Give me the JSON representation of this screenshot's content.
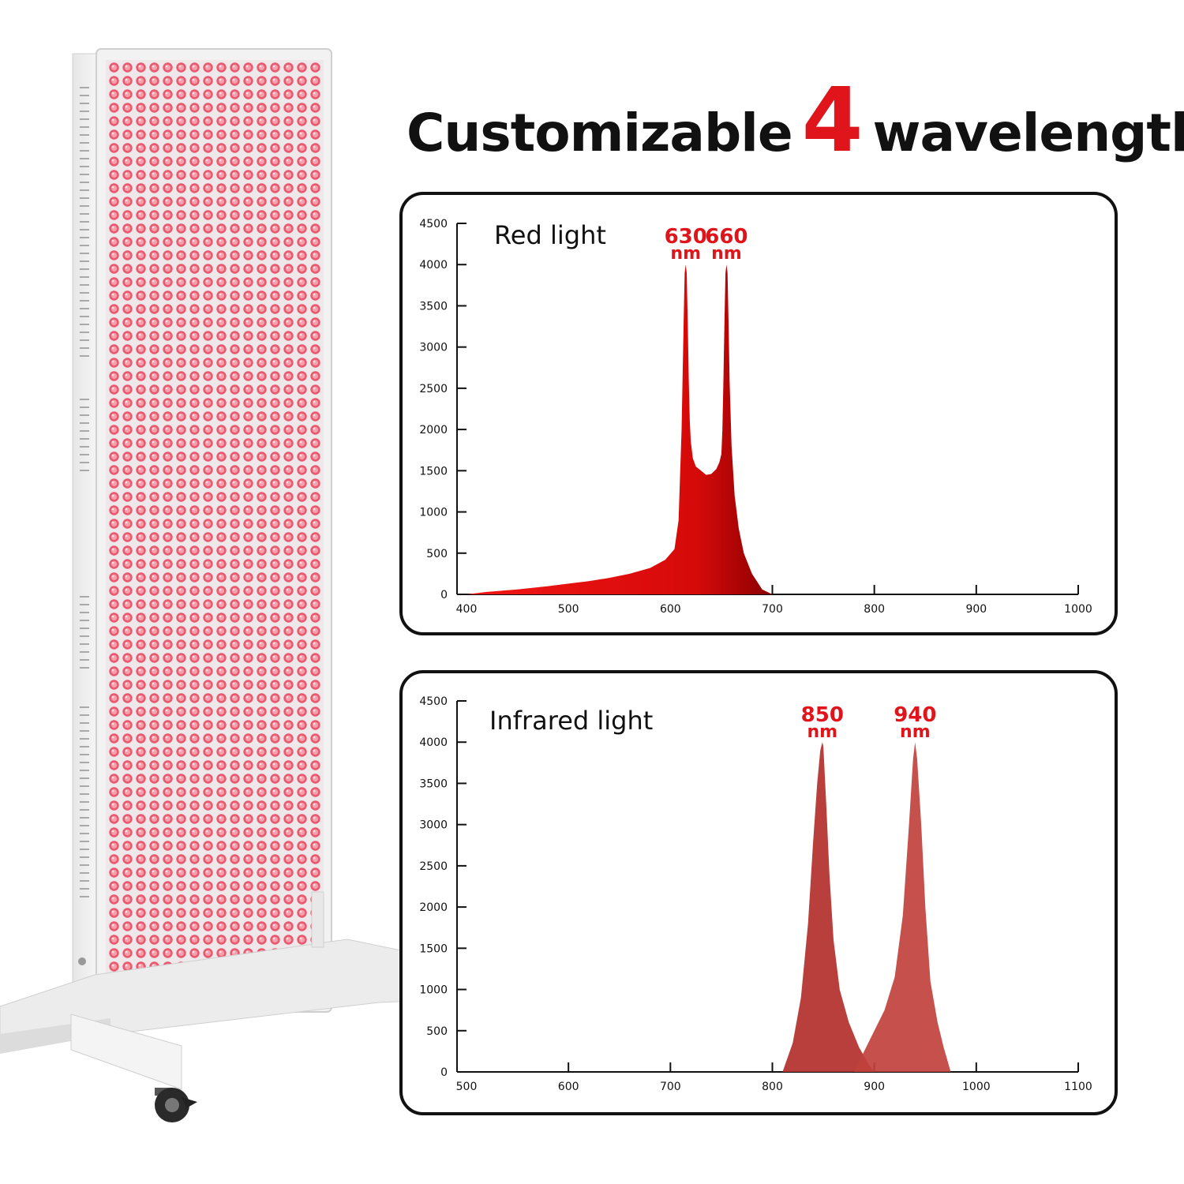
{
  "headline": {
    "before": "Customizable",
    "number": "4",
    "after": "wavelengths"
  },
  "colors": {
    "accent": "#e0141b",
    "red_fill": "#cc0a0a",
    "infrared_fill": "#b83a36"
  },
  "product_image": {
    "icon": "red-light-therapy-panel-on-stand"
  },
  "chart_data": [
    {
      "type": "area",
      "title": "Red light",
      "xlabel": "",
      "ylabel": "",
      "xlim": [
        400,
        1000
      ],
      "ylim": [
        0,
        4500
      ],
      "xticks": [
        400,
        500,
        600,
        700,
        800,
        900,
        1000
      ],
      "yticks": [
        0,
        500,
        1000,
        1500,
        2000,
        2500,
        3000,
        3500,
        4000,
        4500
      ],
      "grid": false,
      "annotations": [
        {
          "value": "630",
          "unit": "nm"
        },
        {
          "value": "660",
          "unit": "nm"
        }
      ],
      "series": [
        {
          "x": [
            400,
            420,
            450,
            480,
            500,
            520,
            540,
            560,
            580,
            595,
            604,
            608,
            611,
            613,
            614,
            615,
            616,
            617,
            618,
            619,
            620,
            622,
            625,
            630,
            635,
            640,
            645,
            648,
            650,
            651,
            652,
            653,
            654,
            655,
            656,
            657,
            658,
            660,
            663,
            667,
            672,
            680,
            690,
            700
          ],
          "y": [
            0,
            30,
            60,
            100,
            130,
            160,
            200,
            250,
            320,
            420,
            550,
            900,
            2000,
            3300,
            3900,
            4000,
            3900,
            3300,
            2600,
            2100,
            1850,
            1650,
            1550,
            1500,
            1450,
            1460,
            1520,
            1600,
            1700,
            2000,
            2600,
            3300,
            3900,
            4000,
            3900,
            3300,
            2600,
            1800,
            1200,
            800,
            500,
            250,
            60,
            0
          ]
        }
      ]
    },
    {
      "type": "area",
      "title": "Infrared light",
      "xlabel": "",
      "ylabel": "",
      "xlim": [
        500,
        1100
      ],
      "ylim": [
        0,
        4500
      ],
      "xticks": [
        500,
        600,
        700,
        800,
        900,
        1000,
        1100
      ],
      "yticks": [
        0,
        500,
        1000,
        1500,
        2000,
        2500,
        3000,
        3500,
        4000,
        4500
      ],
      "grid": false,
      "annotations": [
        {
          "value": "850",
          "unit": "nm"
        },
        {
          "value": "940",
          "unit": "nm"
        }
      ],
      "series": [
        {
          "x": [
            810,
            820,
            828,
            835,
            840,
            844,
            847,
            849,
            850,
            851,
            853,
            856,
            860,
            866,
            875,
            885,
            895,
            900
          ],
          "y": [
            0,
            350,
            900,
            1800,
            2800,
            3500,
            3900,
            4000,
            3950,
            3700,
            3200,
            2400,
            1600,
            1000,
            600,
            300,
            80,
            0
          ]
        },
        {
          "x": [
            880,
            890,
            900,
            910,
            920,
            928,
            934,
            938,
            940,
            942,
            946,
            950,
            955,
            962,
            968,
            975
          ],
          "y": [
            0,
            250,
            500,
            750,
            1150,
            1900,
            3000,
            3800,
            4000,
            3800,
            3000,
            2000,
            1100,
            600,
            300,
            0
          ]
        }
      ]
    }
  ]
}
